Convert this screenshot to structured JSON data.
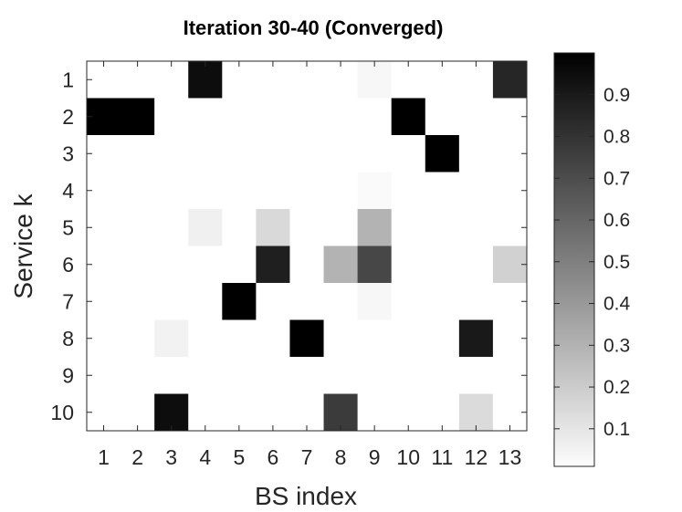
{
  "chart_data": {
    "type": "heatmap",
    "title": "Iteration 30-40 (Converged)",
    "xlabel": "BS index",
    "ylabel": "Service k",
    "x_categories": [
      "1",
      "2",
      "3",
      "4",
      "5",
      "6",
      "7",
      "8",
      "9",
      "10",
      "11",
      "12",
      "13"
    ],
    "y_categories": [
      "1",
      "2",
      "3",
      "4",
      "5",
      "6",
      "7",
      "8",
      "9",
      "10"
    ],
    "values": [
      [
        0,
        0,
        0,
        0.95,
        0,
        0,
        0,
        0,
        0.03,
        0,
        0,
        0,
        0.85
      ],
      [
        1,
        1,
        0,
        0,
        0,
        0,
        0,
        0,
        0,
        1,
        0,
        0,
        0
      ],
      [
        0,
        0,
        0,
        0,
        0,
        0,
        0,
        0,
        0,
        0,
        1,
        0,
        0
      ],
      [
        0,
        0,
        0,
        0,
        0,
        0,
        0,
        0,
        0.02,
        0,
        0,
        0,
        0
      ],
      [
        0,
        0,
        0,
        0.06,
        0,
        0.15,
        0,
        0,
        0.3,
        0,
        0,
        0,
        0
      ],
      [
        0,
        0,
        0,
        0,
        0,
        0.88,
        0,
        0.3,
        0.72,
        0,
        0,
        0,
        0.18
      ],
      [
        0,
        0,
        0,
        0,
        1,
        0,
        0,
        0,
        0.03,
        0,
        0,
        0,
        0
      ],
      [
        0,
        0,
        0.05,
        0,
        0,
        0,
        1,
        0,
        0,
        0,
        0,
        0.9,
        0
      ],
      [
        0,
        0,
        0,
        0,
        0,
        0,
        0,
        0,
        0,
        0,
        0,
        0,
        0
      ],
      [
        0,
        0,
        0.95,
        0,
        0,
        0,
        0,
        0.77,
        0,
        0,
        0,
        0.14,
        0
      ]
    ],
    "colormap": "gray-reversed",
    "clim": [
      0,
      1
    ],
    "colorbar": {
      "ticks": [
        "0.1",
        "0.2",
        "0.3",
        "0.4",
        "0.5",
        "0.6",
        "0.7",
        "0.8",
        "0.9"
      ],
      "tick_values": [
        0.1,
        0.2,
        0.3,
        0.4,
        0.5,
        0.6,
        0.7,
        0.8,
        0.9
      ],
      "range": [
        0.01,
        1
      ]
    }
  }
}
